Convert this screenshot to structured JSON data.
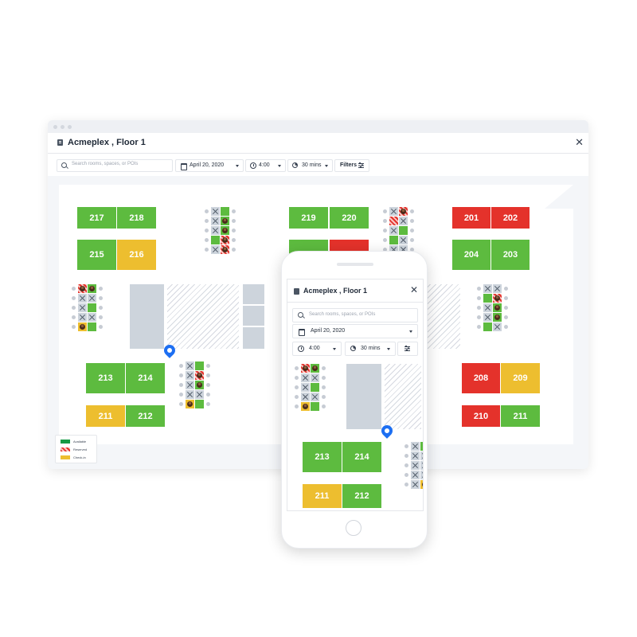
{
  "app": {
    "title": "Acmeplex , Floor 1",
    "close": "✕",
    "search_placeholder": "Search rooms, spaces, or POIs",
    "date": "April 20, 2020",
    "time": "4:00",
    "duration": "30 mins",
    "filters_label": "Filters"
  },
  "rooms": {
    "r217": "217",
    "r218": "218",
    "r215": "215",
    "r216": "216",
    "r219": "219",
    "r220": "220",
    "r201": "201",
    "r202": "202",
    "r204": "204",
    "r203": "203",
    "r213": "213",
    "r214": "214",
    "r211a": "211",
    "r212": "212",
    "r208": "208",
    "r209": "209",
    "r210": "210",
    "r211b": "211"
  },
  "legend": {
    "available": "Available",
    "reserved": "Reserved",
    "checkin": "Check-in"
  },
  "phone": {
    "title": "Acmeplex , Floor 1",
    "close": "✕",
    "search_placeholder": "Search rooms, spaces, or POIs",
    "date": "April 20, 2020",
    "time": "4:00",
    "duration": "30 mins",
    "rooms": {
      "r213": "213",
      "r214": "214",
      "r211": "211",
      "r212": "212"
    }
  },
  "colors": {
    "available": "#5dbb3f",
    "reserved": "#e4322b",
    "checkin": "#edbe2f",
    "pin": "#1d6ff2"
  }
}
